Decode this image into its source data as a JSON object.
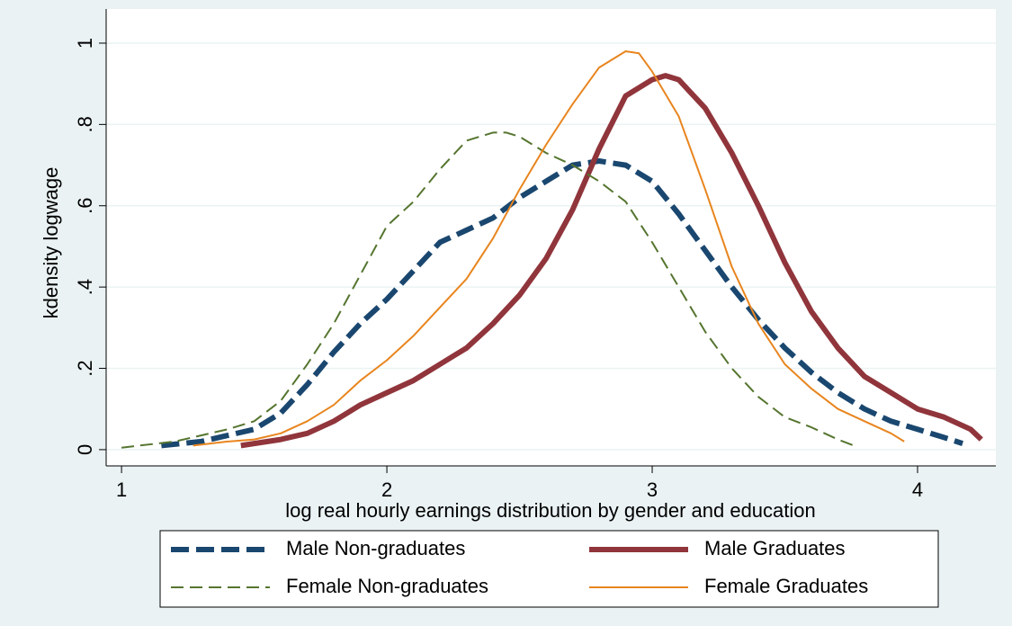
{
  "chart_data": {
    "type": "line",
    "xlabel": "log real hourly earnings distribution by gender and education",
    "ylabel": "kdensity logwage",
    "xlim": [
      0.942,
      4.295
    ],
    "xticks": [
      1,
      2,
      3,
      4
    ],
    "ylim": [
      -0.04,
      1.084
    ],
    "yticks": [
      0,
      {
        "value": 0.2,
        "label": ".2"
      },
      {
        "value": 0.4,
        "label": ".4"
      },
      {
        "value": 0.6,
        "label": ".6"
      },
      {
        "value": 0.8,
        "label": ".8"
      },
      1
    ],
    "grid": true,
    "legend": "bottom",
    "series": [
      {
        "name": "Male Non-graduates",
        "color": "#1a476f",
        "style": "dashed",
        "weight": "thick",
        "x": [
          1.15,
          1.3,
          1.5,
          1.6,
          1.7,
          1.8,
          1.9,
          2.0,
          2.1,
          2.2,
          2.3,
          2.4,
          2.5,
          2.6,
          2.7,
          2.8,
          2.9,
          3.0,
          3.1,
          3.2,
          3.3,
          3.4,
          3.5,
          3.6,
          3.7,
          3.8,
          3.9,
          4.0,
          4.1,
          4.17
        ],
        "values": [
          0.01,
          0.02,
          0.05,
          0.09,
          0.16,
          0.24,
          0.31,
          0.37,
          0.44,
          0.51,
          0.54,
          0.57,
          0.62,
          0.66,
          0.7,
          0.71,
          0.7,
          0.66,
          0.58,
          0.49,
          0.4,
          0.32,
          0.25,
          0.19,
          0.14,
          0.1,
          0.07,
          0.05,
          0.03,
          0.015
        ]
      },
      {
        "name": "Male Graduates",
        "color": "#90353b",
        "style": "solid",
        "weight": "thick",
        "x": [
          1.45,
          1.6,
          1.7,
          1.8,
          1.9,
          2.0,
          2.1,
          2.2,
          2.3,
          2.4,
          2.5,
          2.6,
          2.7,
          2.8,
          2.9,
          3.0,
          3.05,
          3.1,
          3.2,
          3.3,
          3.4,
          3.5,
          3.6,
          3.7,
          3.8,
          3.9,
          4.0,
          4.1,
          4.2,
          4.24
        ],
        "values": [
          0.01,
          0.025,
          0.04,
          0.07,
          0.11,
          0.14,
          0.17,
          0.21,
          0.25,
          0.31,
          0.38,
          0.47,
          0.59,
          0.74,
          0.87,
          0.91,
          0.92,
          0.91,
          0.84,
          0.73,
          0.6,
          0.46,
          0.34,
          0.25,
          0.18,
          0.14,
          0.1,
          0.08,
          0.05,
          0.025
        ]
      },
      {
        "name": "Female Non-graduates",
        "color": "#55752f",
        "style": "dashed",
        "weight": "thin",
        "x": [
          1.0,
          1.2,
          1.4,
          1.5,
          1.6,
          1.7,
          1.8,
          1.9,
          2.0,
          2.1,
          2.2,
          2.3,
          2.4,
          2.45,
          2.5,
          2.6,
          2.7,
          2.8,
          2.9,
          3.0,
          3.1,
          3.2,
          3.3,
          3.4,
          3.5,
          3.6,
          3.7,
          3.76
        ],
        "values": [
          0.005,
          0.02,
          0.05,
          0.07,
          0.12,
          0.21,
          0.31,
          0.43,
          0.55,
          0.61,
          0.69,
          0.76,
          0.78,
          0.78,
          0.77,
          0.73,
          0.7,
          0.66,
          0.61,
          0.51,
          0.4,
          0.29,
          0.2,
          0.13,
          0.08,
          0.055,
          0.025,
          0.01
        ]
      },
      {
        "name": "Female Graduates",
        "color": "#e8851e",
        "style": "solid",
        "weight": "thin",
        "x": [
          1.27,
          1.4,
          1.5,
          1.6,
          1.7,
          1.8,
          1.9,
          2.0,
          2.1,
          2.2,
          2.3,
          2.4,
          2.5,
          2.6,
          2.7,
          2.8,
          2.9,
          2.95,
          3.0,
          3.1,
          3.2,
          3.3,
          3.4,
          3.5,
          3.6,
          3.7,
          3.8,
          3.9,
          3.95
        ],
        "values": [
          0.01,
          0.02,
          0.025,
          0.04,
          0.07,
          0.11,
          0.17,
          0.22,
          0.28,
          0.35,
          0.42,
          0.52,
          0.64,
          0.75,
          0.85,
          0.94,
          0.98,
          0.975,
          0.93,
          0.82,
          0.64,
          0.45,
          0.31,
          0.21,
          0.15,
          0.1,
          0.07,
          0.04,
          0.02
        ]
      }
    ]
  }
}
